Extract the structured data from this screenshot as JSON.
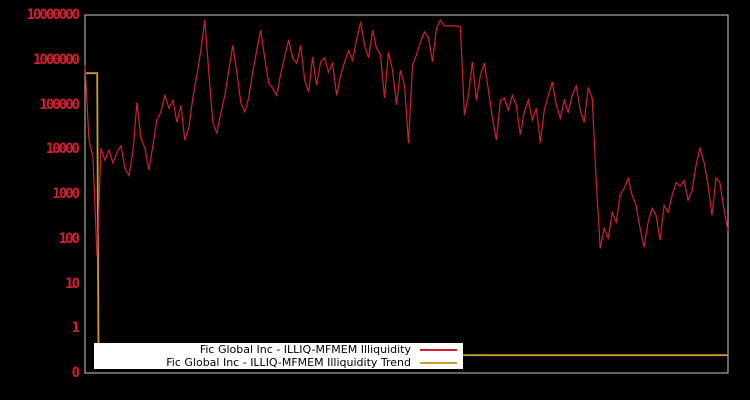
{
  "chart_data": {
    "type": "line",
    "title": "",
    "xlabel": "",
    "ylabel": "",
    "yscale": "log",
    "ylim": [
      0.1,
      10000000
    ],
    "ytick_labels": [
      "10000000",
      "1000000",
      "100000",
      "10000",
      "1000",
      "100",
      "10",
      "1",
      "0"
    ],
    "ytick_values": [
      10000000,
      1000000,
      100000,
      10000,
      1000,
      100,
      10,
      1,
      0.1
    ],
    "x_tick_labels": [],
    "grid": false,
    "legend_position": "bottom-center",
    "series": [
      {
        "name": "Fic Global Inc - ILLIQ-MFMEM Illiquidity",
        "color": "#d1202e",
        "values": [
          760000,
          16000,
          6300,
          40,
          10600,
          5700,
          9500,
          4900,
          8600,
          12000,
          3800,
          2600,
          8600,
          110000,
          18000,
          10600,
          3400,
          12000,
          45000,
          68000,
          160000,
          83000,
          125000,
          40000,
          97000,
          16000,
          30000,
          140000,
          430000,
          1600000,
          7700000,
          530000,
          40000,
          23000,
          64000,
          160000,
          590000,
          2100000,
          530000,
          110000,
          68000,
          140000,
          530000,
          1600000,
          4600000,
          1100000,
          300000,
          230000,
          160000,
          480000,
          1200000,
          2800000,
          1100000,
          840000,
          2100000,
          350000,
          190000,
          1150000,
          270000,
          890000,
          1100000,
          530000,
          840000,
          160000,
          450000,
          890000,
          1600000,
          980000,
          2800000,
          7000000,
          2100000,
          1100000,
          4600000,
          1800000,
          1300000,
          140000,
          1500000,
          590000,
          97000,
          590000,
          270000,
          13700,
          760000,
          1300000,
          2500000,
          4200000,
          3100000,
          890000,
          5100000,
          7700000,
          5700000,
          5700000,
          5700000,
          5700000,
          5400000,
          58000,
          160000,
          890000,
          125000,
          450000,
          840000,
          210000,
          50000,
          16000,
          125000,
          140000,
          75000,
          160000,
          97000,
          21000,
          68000,
          125000,
          45000,
          83000,
          14000,
          75000,
          160000,
          320000,
          97000,
          50000,
          125000,
          68000,
          160000,
          260000,
          75000,
          40000,
          230000,
          140000,
          2000,
          61,
          172,
          103,
          390,
          234,
          940,
          1350,
          2250,
          940,
          560,
          172,
          65,
          234,
          480,
          335,
          93,
          560,
          390,
          940,
          1800,
          1500,
          2000,
          730,
          1200,
          4400,
          10600,
          5200,
          1600,
          335,
          2250,
          1750,
          430,
          155
        ]
      },
      {
        "name": "Fic Global Inc - ILLIQ-MFMEM Illiquidity Trend",
        "color": "#c99e30",
        "x": [
          0,
          0.019,
          0.021,
          1.0
        ],
        "values": [
          500000,
          500000,
          0.25,
          0.25
        ]
      }
    ],
    "colors": {
      "background": "#000000",
      "plot_border": "#c8c8c8",
      "tick_label": "#d1202e",
      "legend_background": "#ffffff",
      "legend_text": "#000000"
    }
  }
}
